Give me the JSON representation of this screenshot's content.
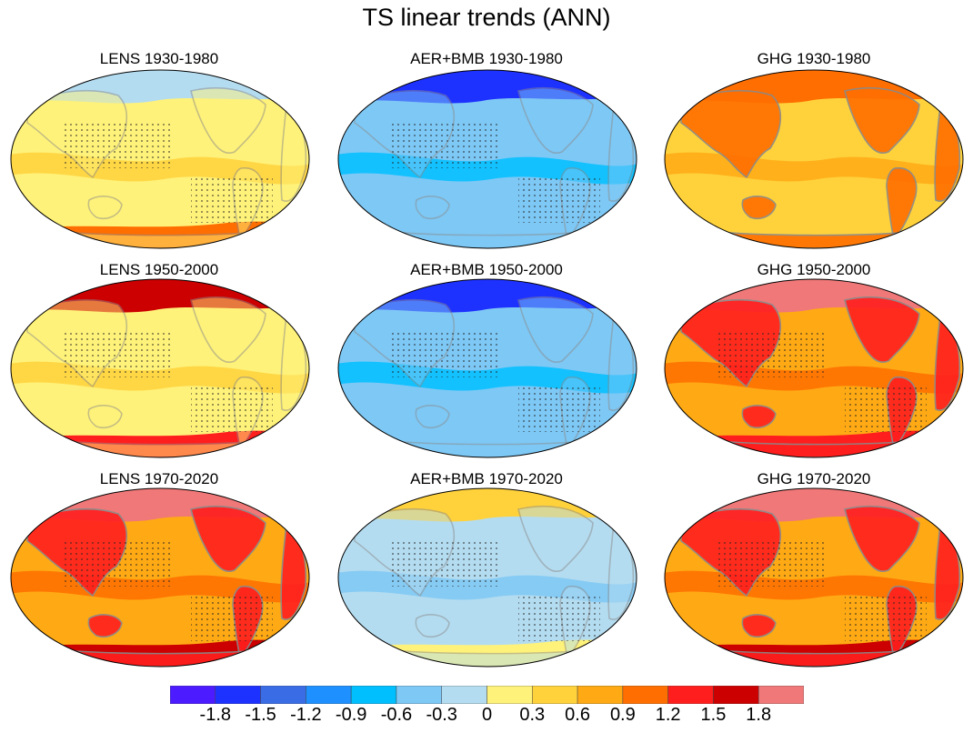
{
  "title": "TS linear trends (ANN)",
  "colors": {
    "levels": [
      "#4c1bff",
      "#1e32ff",
      "#3a6ce6",
      "#1e90ff",
      "#00bfff",
      "#7ec8f5",
      "#b4dcf0",
      "#fff27a",
      "#ffd23c",
      "#ffaa14",
      "#ff6e00",
      "#ff1e1e",
      "#cc0000",
      "#f07878"
    ],
    "coast": "#8a8a8a",
    "outline": "#000000"
  },
  "colorbar": {
    "tick_labels": [
      "-1.8",
      "-1.5",
      "-1.2",
      "-0.9",
      "-0.6",
      "-0.3",
      "0",
      "0.3",
      "0.6",
      "0.9",
      "1.2",
      "1.5",
      "1.8"
    ]
  },
  "panels": [
    {
      "id": "lens-1930",
      "title": "LENS 1930-1980",
      "base": 7,
      "north": 6,
      "south": 10,
      "warm_land": false,
      "stipple": true
    },
    {
      "id": "aer-1930",
      "title": "AER+BMB 1930-1980",
      "base": 5,
      "north": 1,
      "south": 5,
      "warm_land": false,
      "stipple": true
    },
    {
      "id": "ghg-1930",
      "title": "GHG 1930-1980",
      "base": 8,
      "north": 10,
      "south": 8,
      "warm_land": true,
      "stipple": false
    },
    {
      "id": "lens-1950",
      "title": "LENS 1950-2000",
      "base": 7,
      "north": 12,
      "south": 11,
      "warm_land": false,
      "stipple": true
    },
    {
      "id": "aer-1950",
      "title": "AER+BMB 1950-2000",
      "base": 5,
      "north": 1,
      "south": 5,
      "warm_land": false,
      "stipple": true
    },
    {
      "id": "ghg-1950",
      "title": "GHG 1950-2000",
      "base": 9,
      "north": 13,
      "south": 11,
      "warm_land": true,
      "stipple": true
    },
    {
      "id": "lens-1970",
      "title": "LENS 1970-2020",
      "base": 9,
      "north": 13,
      "south": 12,
      "warm_land": true,
      "stipple": true
    },
    {
      "id": "aer-1970",
      "title": "AER+BMB 1970-2020",
      "base": 6,
      "north": 8,
      "south": 7,
      "warm_land": false,
      "stipple": true
    },
    {
      "id": "ghg-1970",
      "title": "GHG 1970-2020",
      "base": 9,
      "north": 13,
      "south": 12,
      "warm_land": true,
      "stipple": true
    }
  ]
}
